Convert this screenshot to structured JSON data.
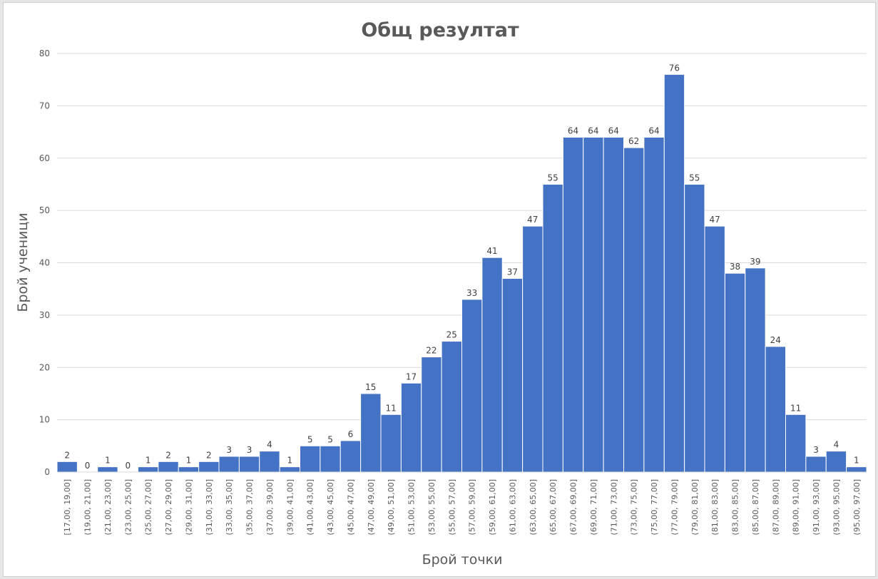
{
  "chart_data": {
    "type": "bar",
    "title": "Общ резултат",
    "xlabel": "Брой точки",
    "ylabel": "Брой ученици",
    "ylim": [
      0,
      80
    ],
    "yticks": [
      0,
      10,
      20,
      30,
      40,
      50,
      60,
      70,
      80
    ],
    "grid": true,
    "bar_color": "#4472C4",
    "categories": [
      "[17,00, 19,00]",
      "(19,00, 21,00]",
      "(21,00, 23,00]",
      "(23,00, 25,00]",
      "(25,00, 27,00]",
      "(27,00, 29,00]",
      "(29,00, 31,00]",
      "(31,00, 33,00]",
      "(33,00, 35,00]",
      "(35,00, 37,00]",
      "(37,00, 39,00]",
      "(39,00, 41,00]",
      "(41,00, 43,00]",
      "(43,00, 45,00]",
      "(45,00, 47,00]",
      "(47,00, 49,00]",
      "(49,00, 51,00]",
      "(51,00, 53,00]",
      "(53,00, 55,00]",
      "(55,00, 57,00]",
      "(57,00, 59,00]",
      "(59,00, 61,00]",
      "(61,00, 63,00]",
      "(63,00, 65,00]",
      "(65,00, 67,00]",
      "(67,00, 69,00]",
      "(69,00, 71,00]",
      "(71,00, 73,00]",
      "(73,00, 75,00]",
      "(75,00, 77,00]",
      "(77,00, 79,00]",
      "(79,00, 81,00]",
      "(81,00, 83,00]",
      "(83,00, 85,00]",
      "(85,00, 87,00]",
      "(87,00, 89,00]",
      "(89,00, 91,00]",
      "(91,00, 93,00]",
      "(93,00, 95,00]",
      "(95,00, 97,00]"
    ],
    "values": [
      2,
      0,
      1,
      0,
      1,
      2,
      1,
      2,
      3,
      3,
      4,
      1,
      5,
      5,
      6,
      15,
      11,
      17,
      22,
      25,
      33,
      41,
      37,
      47,
      55,
      64,
      64,
      64,
      62,
      64,
      76,
      55,
      47,
      38,
      39,
      24,
      11,
      3,
      4,
      1
    ]
  }
}
